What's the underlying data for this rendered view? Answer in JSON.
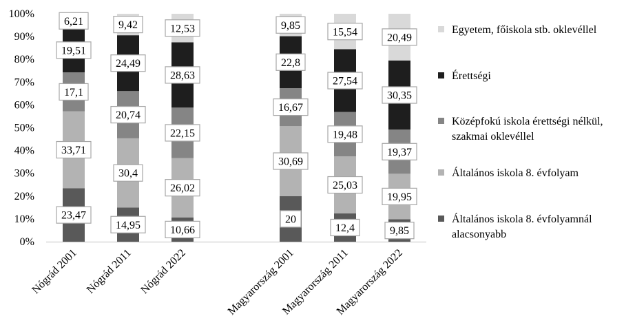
{
  "chart_data": {
    "type": "bar",
    "stacked": true,
    "percent_stacked": true,
    "title": "",
    "xlabel": "",
    "ylabel": "",
    "ylim": [
      0,
      100
    ],
    "y_ticks": [
      "0%",
      "10%",
      "20%",
      "30%",
      "40%",
      "50%",
      "60%",
      "70%",
      "80%",
      "90%",
      "100%"
    ],
    "grid": false,
    "legend_position": "right",
    "categories": [
      "Nógrád 2001",
      "Nógrád 2011",
      "Nógrád 2022",
      "Magyarország 2001",
      "Magyarország 2011",
      "Magyarország 2022"
    ],
    "series": [
      {
        "name": "Általános iskola 8. évfolyamnál alacsonyabb",
        "color": "#595959",
        "values": [
          23.47,
          14.95,
          10.66,
          20,
          12.4,
          9.85
        ],
        "labels": [
          "23,47",
          "14,95",
          "10,66",
          "20",
          "12,4",
          "9,85"
        ]
      },
      {
        "name": "Általános iskola 8. évfolyam",
        "color": "#b3b3b3",
        "values": [
          33.71,
          30.4,
          26.02,
          30.69,
          25.03,
          19.95
        ],
        "labels": [
          "33,71",
          "30,4",
          "26,02",
          "30,69",
          "25,03",
          "19,95"
        ]
      },
      {
        "name": "Középfokú iskola érettségi nélkül, szakmai oklevéllel",
        "color": "#858585",
        "values": [
          17.1,
          20.74,
          22.15,
          16.67,
          19.48,
          19.37
        ],
        "labels": [
          "17,1",
          "20,74",
          "22,15",
          "16,67",
          "19,48",
          "19,37"
        ]
      },
      {
        "name": "Érettségi",
        "color": "#1e1e1e",
        "values": [
          19.51,
          24.49,
          28.63,
          22.8,
          27.54,
          30.35
        ],
        "labels": [
          "19,51",
          "24,49",
          "28,63",
          "22,8",
          "27,54",
          "30,35"
        ]
      },
      {
        "name": "Egyetem, főiskola stb. oklevéllel",
        "color": "#d9d9d9",
        "values": [
          6.21,
          9.42,
          12.53,
          9.85,
          15.54,
          20.49
        ],
        "labels": [
          "6,21",
          "9,42",
          "12,53",
          "9,85",
          "15,54",
          "20,49"
        ]
      }
    ],
    "legend": [
      {
        "text": "Egyetem, főiskola stb. oklevéllel",
        "color": "#d9d9d9"
      },
      {
        "text": "Érettségi",
        "color": "#1e1e1e"
      },
      {
        "text": "Középfokú iskola érettségi nélkül,",
        "text2": "szakmai oklevéllel",
        "color": "#858585"
      },
      {
        "text": "Általános iskola 8. évfolyam",
        "color": "#b3b3b3"
      },
      {
        "text": "Általános iskola 8. évfolyamnál",
        "text2": "alacsonyabb",
        "color": "#595959"
      }
    ]
  }
}
